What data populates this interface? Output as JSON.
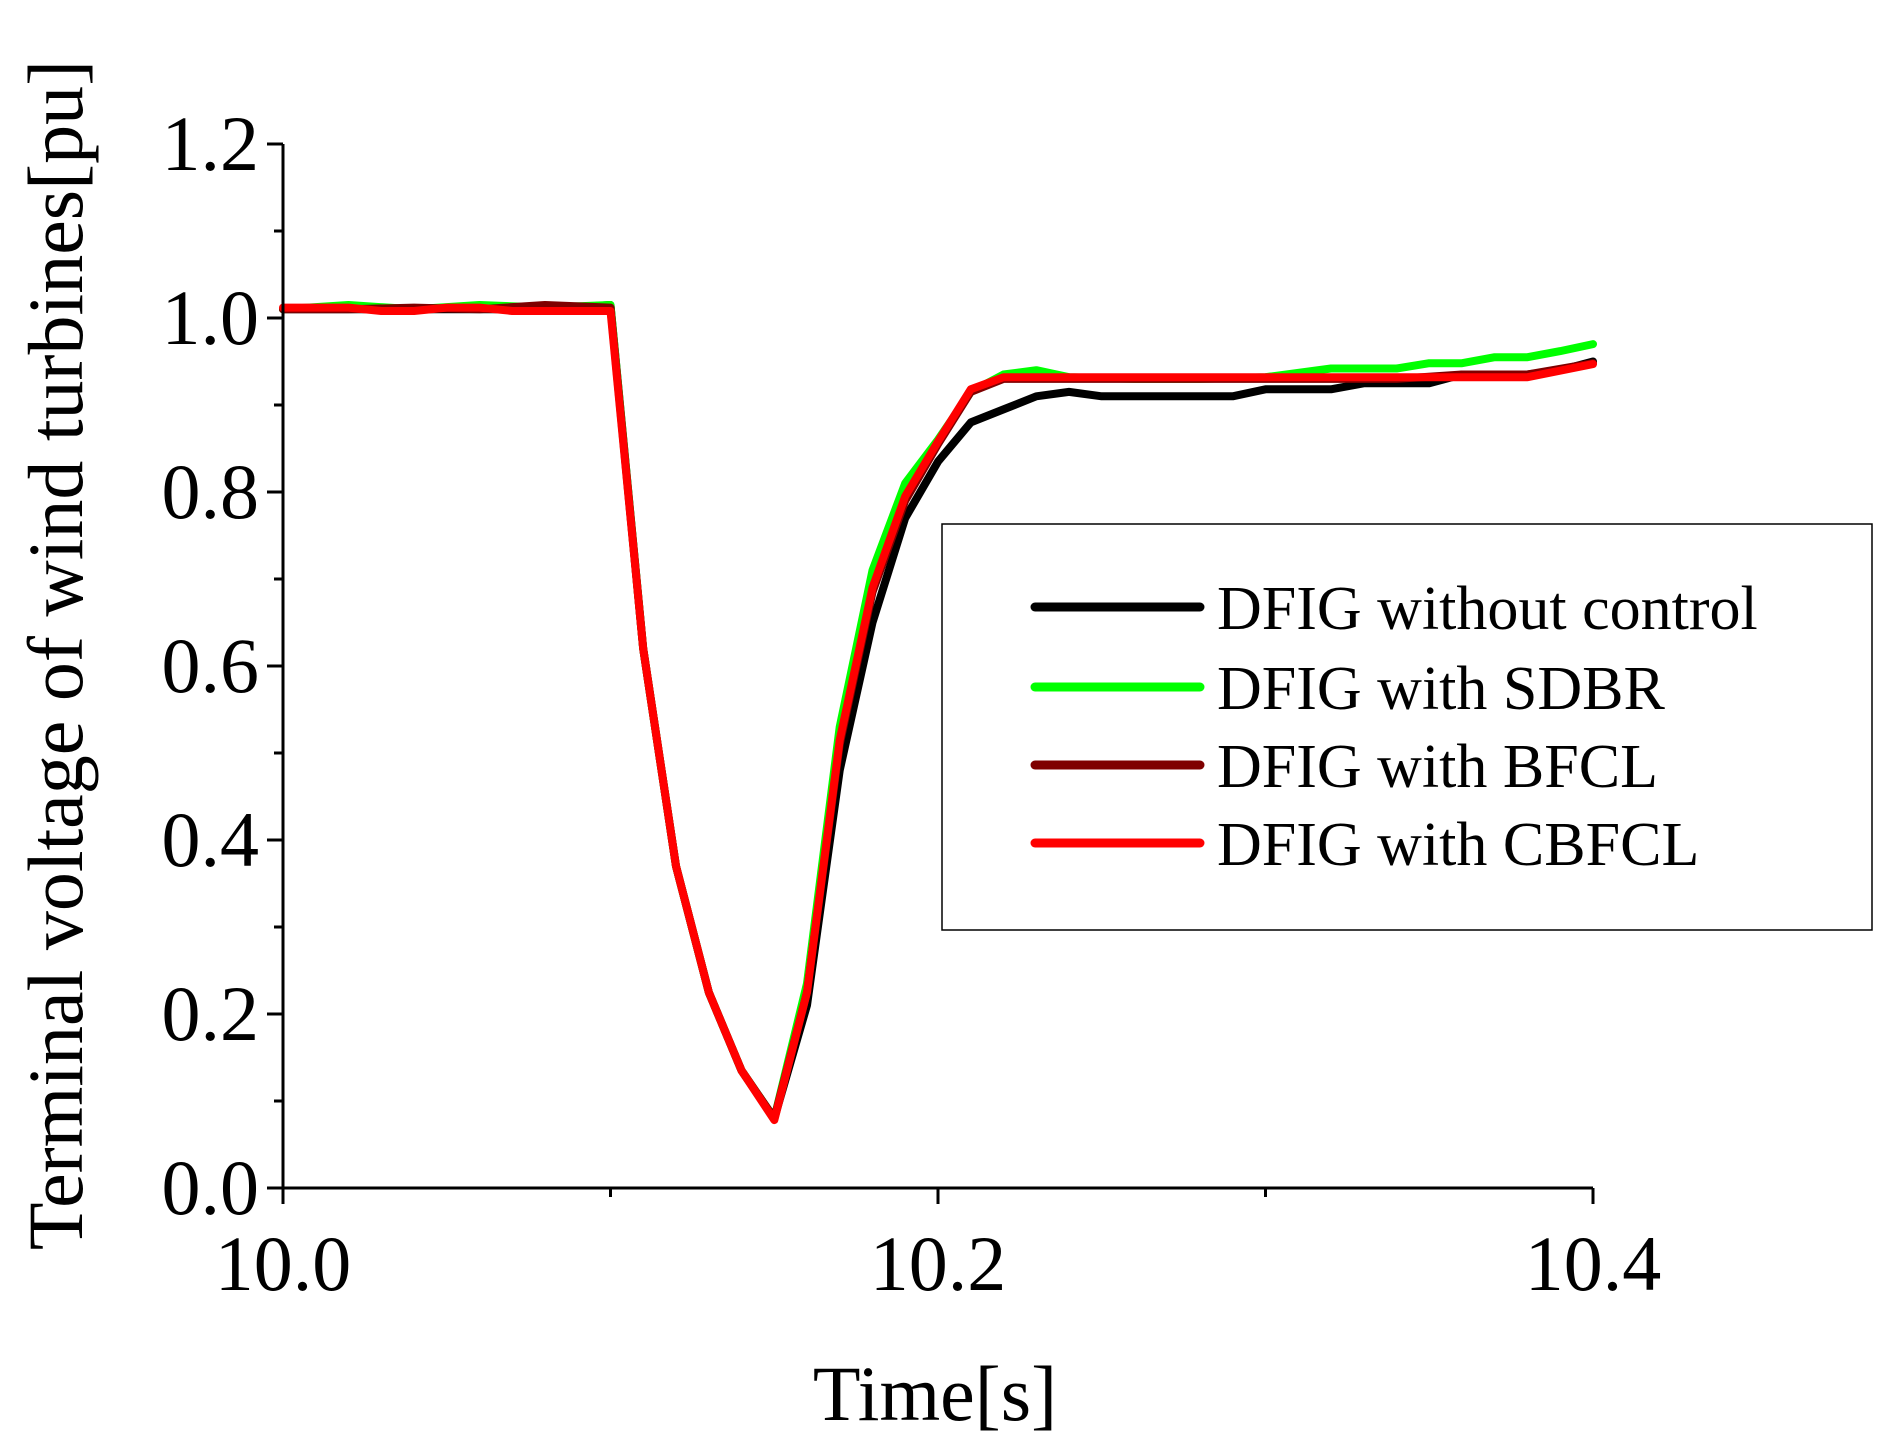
{
  "chart_data": {
    "type": "line",
    "title": "",
    "xlabel": "Time[s]",
    "ylabel": "Terminal voltage of wind turbines[pu]",
    "xlim": [
      10.0,
      10.4
    ],
    "ylim": [
      0.0,
      1.2
    ],
    "xticks": [
      10.0,
      10.2,
      10.4
    ],
    "xtick_labels": [
      "10.0",
      "10.2",
      "10.4"
    ],
    "x_minor_ticks": [
      10.1,
      10.3
    ],
    "yticks": [
      0.0,
      0.2,
      0.4,
      0.6,
      0.8,
      1.0,
      1.2
    ],
    "ytick_labels": [
      "0.0",
      "0.2",
      "0.4",
      "0.6",
      "0.8",
      "1.0",
      "1.2"
    ],
    "y_minor_ticks": [
      0.1,
      0.3,
      0.5,
      0.7,
      0.9,
      1.1
    ],
    "grid": false,
    "legend_position": "right-middle",
    "series": [
      {
        "name": "DFIG without control",
        "color": "#000000",
        "points": [
          [
            10.0,
            1.01
          ],
          [
            10.02,
            1.01
          ],
          [
            10.04,
            1.01
          ],
          [
            10.06,
            1.01
          ],
          [
            10.08,
            1.01
          ],
          [
            10.1,
            1.015
          ],
          [
            10.11,
            0.62
          ],
          [
            10.12,
            0.37
          ],
          [
            10.13,
            0.225
          ],
          [
            10.14,
            0.135
          ],
          [
            10.15,
            0.08
          ],
          [
            10.16,
            0.21
          ],
          [
            10.17,
            0.48
          ],
          [
            10.18,
            0.65
          ],
          [
            10.19,
            0.77
          ],
          [
            10.2,
            0.835
          ],
          [
            10.21,
            0.88
          ],
          [
            10.22,
            0.895
          ],
          [
            10.23,
            0.91
          ],
          [
            10.24,
            0.915
          ],
          [
            10.25,
            0.91
          ],
          [
            10.27,
            0.91
          ],
          [
            10.29,
            0.91
          ],
          [
            10.3,
            0.918
          ],
          [
            10.32,
            0.918
          ],
          [
            10.33,
            0.925
          ],
          [
            10.35,
            0.925
          ],
          [
            10.36,
            0.935
          ],
          [
            10.38,
            0.935
          ],
          [
            10.39,
            0.94
          ],
          [
            10.4,
            0.95
          ]
        ]
      },
      {
        "name": "DFIG with SDBR",
        "color": "#00ff00",
        "points": [
          [
            10.0,
            1.01
          ],
          [
            10.02,
            1.015
          ],
          [
            10.04,
            1.01
          ],
          [
            10.06,
            1.015
          ],
          [
            10.08,
            1.012
          ],
          [
            10.1,
            1.015
          ],
          [
            10.11,
            0.62
          ],
          [
            10.12,
            0.37
          ],
          [
            10.13,
            0.225
          ],
          [
            10.14,
            0.135
          ],
          [
            10.15,
            0.08
          ],
          [
            10.16,
            0.235
          ],
          [
            10.17,
            0.53
          ],
          [
            10.18,
            0.71
          ],
          [
            10.19,
            0.81
          ],
          [
            10.2,
            0.86
          ],
          [
            10.21,
            0.915
          ],
          [
            10.22,
            0.935
          ],
          [
            10.23,
            0.94
          ],
          [
            10.24,
            0.932
          ],
          [
            10.26,
            0.93
          ],
          [
            10.28,
            0.93
          ],
          [
            10.3,
            0.932
          ],
          [
            10.32,
            0.942
          ],
          [
            10.34,
            0.942
          ],
          [
            10.35,
            0.948
          ],
          [
            10.36,
            0.948
          ],
          [
            10.37,
            0.955
          ],
          [
            10.38,
            0.955
          ],
          [
            10.39,
            0.962
          ],
          [
            10.4,
            0.97
          ]
        ]
      },
      {
        "name": "DFIG with BFCL",
        "color": "#7f0000",
        "points": [
          [
            10.0,
            1.01
          ],
          [
            10.02,
            1.01
          ],
          [
            10.04,
            1.012
          ],
          [
            10.06,
            1.01
          ],
          [
            10.08,
            1.015
          ],
          [
            10.1,
            1.012
          ],
          [
            10.11,
            0.62
          ],
          [
            10.12,
            0.37
          ],
          [
            10.13,
            0.225
          ],
          [
            10.14,
            0.135
          ],
          [
            10.15,
            0.08
          ],
          [
            10.16,
            0.225
          ],
          [
            10.17,
            0.51
          ],
          [
            10.18,
            0.685
          ],
          [
            10.19,
            0.79
          ],
          [
            10.2,
            0.855
          ],
          [
            10.21,
            0.915
          ],
          [
            10.22,
            0.93
          ],
          [
            10.24,
            0.93
          ],
          [
            10.26,
            0.93
          ],
          [
            10.28,
            0.93
          ],
          [
            10.3,
            0.93
          ],
          [
            10.32,
            0.93
          ],
          [
            10.34,
            0.93
          ],
          [
            10.36,
            0.935
          ],
          [
            10.38,
            0.935
          ],
          [
            10.4,
            0.948
          ]
        ]
      },
      {
        "name": "DFIG with CBFCL",
        "color": "#ff0000",
        "points": [
          [
            10.0,
            1.012
          ],
          [
            10.02,
            1.012
          ],
          [
            10.03,
            1.008
          ],
          [
            10.04,
            1.008
          ],
          [
            10.05,
            1.012
          ],
          [
            10.06,
            1.012
          ],
          [
            10.07,
            1.008
          ],
          [
            10.1,
            1.008
          ],
          [
            10.11,
            0.62
          ],
          [
            10.12,
            0.37
          ],
          [
            10.13,
            0.225
          ],
          [
            10.14,
            0.135
          ],
          [
            10.15,
            0.078
          ],
          [
            10.16,
            0.225
          ],
          [
            10.17,
            0.515
          ],
          [
            10.18,
            0.69
          ],
          [
            10.19,
            0.795
          ],
          [
            10.2,
            0.858
          ],
          [
            10.21,
            0.918
          ],
          [
            10.22,
            0.932
          ],
          [
            10.24,
            0.932
          ],
          [
            10.26,
            0.932
          ],
          [
            10.28,
            0.932
          ],
          [
            10.3,
            0.932
          ],
          [
            10.32,
            0.932
          ],
          [
            10.34,
            0.932
          ],
          [
            10.36,
            0.932
          ],
          [
            10.38,
            0.932
          ],
          [
            10.4,
            0.947
          ]
        ]
      }
    ]
  }
}
